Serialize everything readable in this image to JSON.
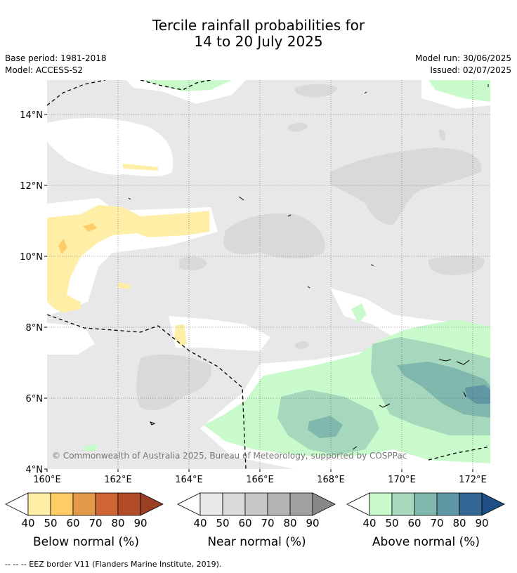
{
  "title_line1": "Tercile rainfall probabilities for",
  "title_line2": "14 to 20 July 2025",
  "base_period": "Base period: 1981-2018",
  "model": "Model: ACCESS-S2",
  "model_run": "Model run: 30/06/2025",
  "issued": "Issued: 02/07/2025",
  "copyright": "© Commonwealth of Australia 2025, Bureau of Meteorology, supported by COSPPac",
  "lat_labels": [
    "14°N",
    "12°N",
    "10°N",
    "8°N",
    "6°N",
    "4°N"
  ],
  "lon_labels": [
    "160°E",
    "162°E",
    "164°E",
    "166°E",
    "168°E",
    "170°E",
    "172°E"
  ],
  "legends": [
    {
      "label": "Below normal (%)",
      "ticks": [
        "40",
        "50",
        "60",
        "70",
        "80",
        "90"
      ],
      "colors": [
        "#ffeea6",
        "#ffcc66",
        "#e39a4a",
        "#cf6434",
        "#b24b28",
        "#993f24"
      ]
    },
    {
      "label": "Near normal (%)",
      "ticks": [
        "40",
        "50",
        "60",
        "70",
        "80",
        "90"
      ],
      "colors": [
        "#e8e8e8",
        "#d9d9d9",
        "#c7c7c7",
        "#b5b5b5",
        "#a1a1a1",
        "#888888"
      ]
    },
    {
      "label": "Above normal (%)",
      "ticks": [
        "40",
        "50",
        "60",
        "70",
        "80",
        "90"
      ],
      "colors": [
        "#c8facb",
        "#a6d8bd",
        "#80b8ad",
        "#5f97a4",
        "#336896",
        "#1f4f86"
      ]
    }
  ],
  "footnote": "--  --  -- EEZ border V11 (Flanders Marine Institute, 2019)."
}
